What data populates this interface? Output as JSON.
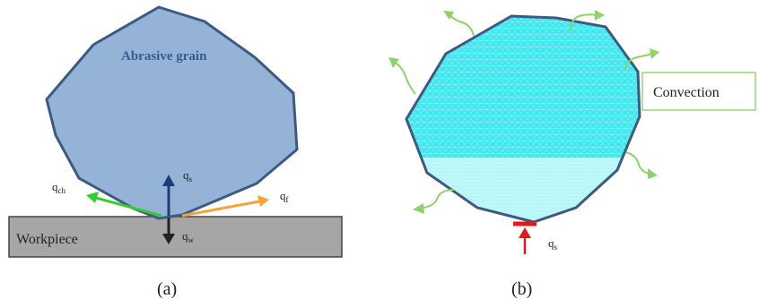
{
  "panel_a": {
    "grain_label": "Abrasive grain",
    "workpiece_label": "Workpiece",
    "flux_labels": {
      "qs": {
        "base": "q",
        "sub": "s"
      },
      "qch": {
        "base": "q",
        "sub": "ch"
      },
      "qf": {
        "base": "q",
        "sub": "f"
      },
      "qw": {
        "base": "q",
        "sub": "w"
      }
    },
    "caption": "(a)"
  },
  "panel_b": {
    "convection_label": "Convection",
    "flux_label": {
      "base": "q",
      "sub": "s"
    },
    "caption": "(b)"
  },
  "colors": {
    "grain_fill": "#95b3d7",
    "grain_stroke": "#3d5a80",
    "workpiece_fill": "#a6a6a6",
    "mesh_fill": "#3ee6ee",
    "mesh_lower": "#aef5f8",
    "arrow_green": "#33cc33",
    "arrow_orange": "#f4a43a",
    "arrow_blue": "#1f3b73",
    "arrow_dark": "#222222",
    "arrow_red": "#e0191c",
    "convection_green": "#8dd36a",
    "callout_border": "#9bd27a"
  },
  "icons": {
    "convection": "wavy-arrow"
  }
}
